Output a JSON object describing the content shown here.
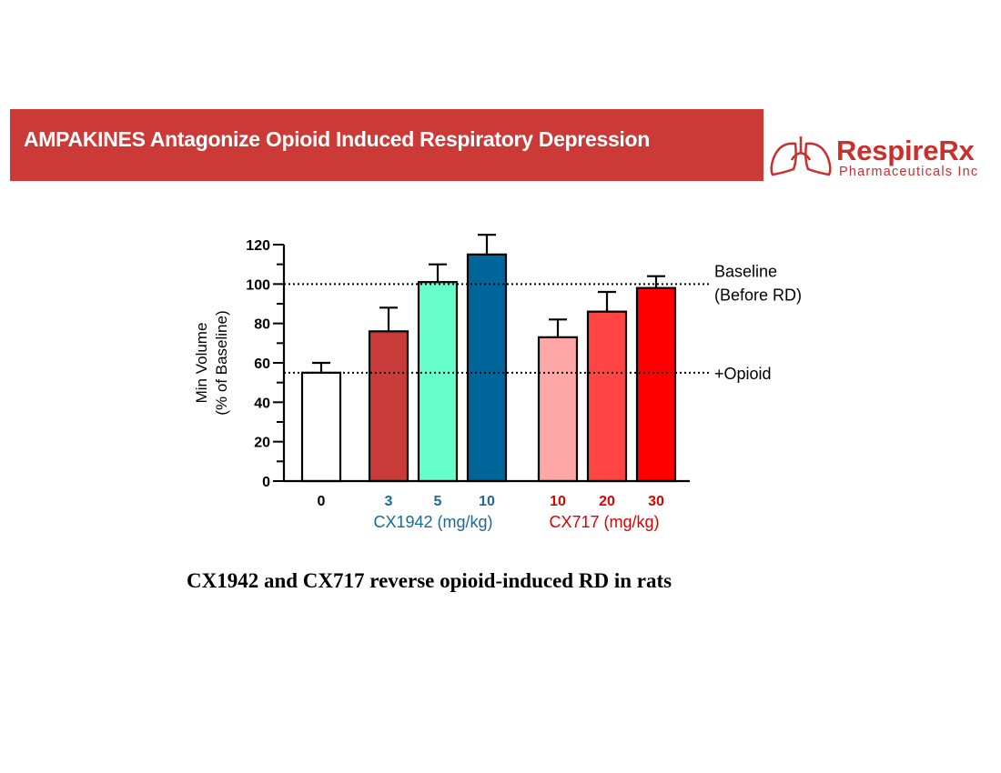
{
  "slide": {
    "title": "AMPAKINES Antagonize Opioid Induced Respiratory Depression",
    "caption": "CX1942 and CX717 reverse opioid-induced RD in rats"
  },
  "logo": {
    "name": "RespireRx",
    "subtitle": "Pharmaceuticals Inc"
  },
  "colors": {
    "banner": "#cc3a37",
    "logo": "#c9302c",
    "cx1942_label": "#1a6a9a",
    "cx717_label": "#e00000"
  },
  "chart_data": {
    "type": "bar",
    "ylabel": [
      "Min Volume",
      "(% of Baseline)"
    ],
    "ylim": [
      0,
      120
    ],
    "yticks": [
      0,
      20,
      40,
      60,
      80,
      100,
      120
    ],
    "grid": false,
    "groups": [
      {
        "name": "",
        "label_color": "#000000"
      },
      {
        "name": "CX1942 (mg/kg)",
        "label_color": "#1a6a9a"
      },
      {
        "name": "CX717 (mg/kg)",
        "label_color": "#e00000"
      }
    ],
    "bars": [
      {
        "category": "0",
        "group": 0,
        "value": 55,
        "error": 5,
        "color": "#ffffff"
      },
      {
        "category": "3",
        "group": 1,
        "value": 76,
        "error": 12,
        "color": "#c93b38"
      },
      {
        "category": "5",
        "group": 1,
        "value": 101,
        "error": 9,
        "color": "#66ffcc"
      },
      {
        "category": "10",
        "group": 1,
        "value": 115,
        "error": 10,
        "color": "#00669a"
      },
      {
        "category": "10",
        "group": 2,
        "value": 73,
        "error": 9,
        "color": "#ffa6a6"
      },
      {
        "category": "20",
        "group": 2,
        "value": 86,
        "error": 10,
        "color": "#ff4444"
      },
      {
        "category": "30",
        "group": 2,
        "value": 98,
        "error": 6,
        "color": "#ff0000"
      }
    ],
    "reference_lines": [
      {
        "value": 100,
        "label": [
          "Baseline",
          "(Before RD)"
        ]
      },
      {
        "value": 55,
        "label": [
          "+Opioid"
        ]
      }
    ]
  }
}
